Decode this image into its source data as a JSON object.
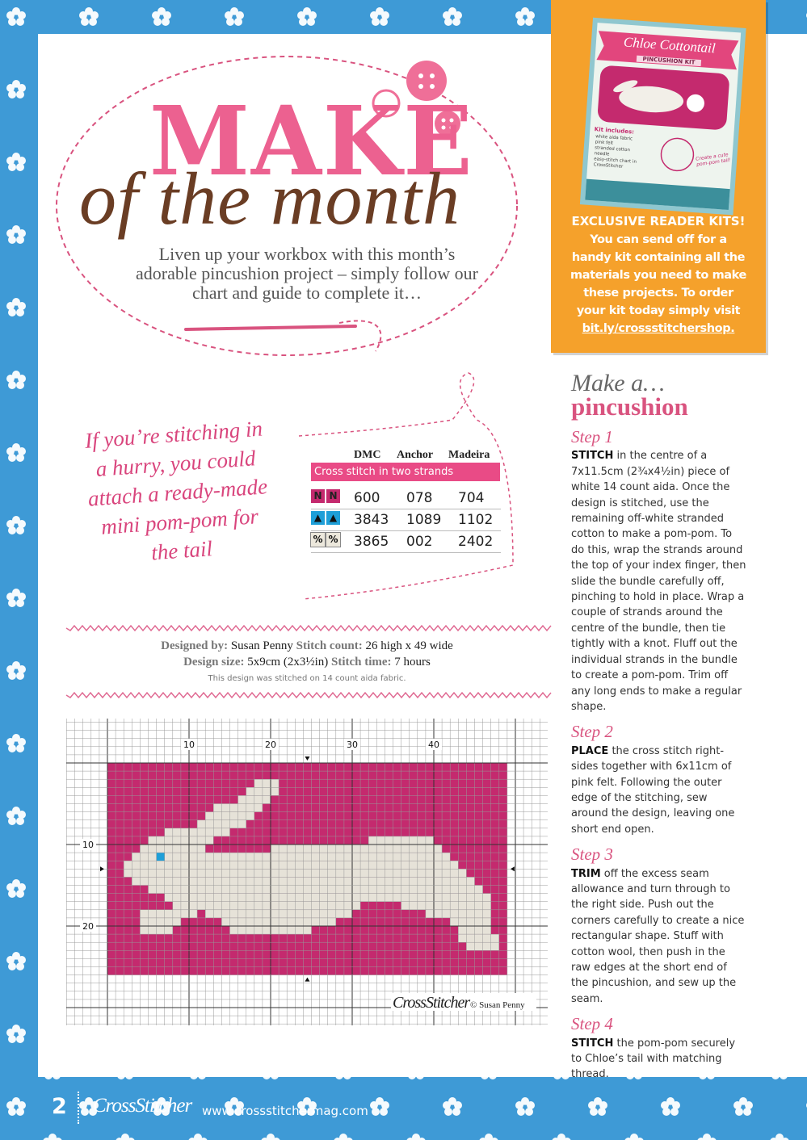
{
  "header": {
    "title": "MAKE",
    "subtitle": "of the month",
    "intro": "Liven up your workbox with this month’s adorable pincushion project – simply follow our chart and guide to complete it…"
  },
  "kit": {
    "product_title": "Chloe Cottontail",
    "product_subtitle": "PINCUSHION KIT",
    "kit_includes_title": "Kit includes:",
    "kit_includes": [
      "white aida fabric",
      "pink felt",
      "stranded cotton",
      "needle",
      "easy-stitch chart in CrossStitcher"
    ],
    "badge": "Create a cute pom-pom tail!",
    "heading": "EXCLUSIVE READER KITS!",
    "text": "You can send off for a handy kit containing all the materials you need to make these projects. To order your kit today simply visit",
    "link": "bit.ly/crossstitchershop."
  },
  "instructions": {
    "heading_1": "Make a…",
    "heading_2": "pincushion",
    "steps": [
      {
        "title": "Step 1",
        "lead": "STITCH",
        "text": "in the centre of a 7x11.5cm (2¾x4½in) piece of white 14 count aida. Once the design is stitched, use the remaining off-white stranded cotton to make a pom-pom. To do this, wrap the strands around the top of your index finger, then slide the bundle carefully off, pinching to hold in place. Wrap a couple of strands around the centre of the bundle, then tie tightly with a knot. Fluff out the individual strands in the bundle to create a pom-pom. Trim off any long ends to make a regular shape."
      },
      {
        "title": "Step 2",
        "lead": "PLACE",
        "text": "the cross stitch right-sides together with 6x11cm of pink felt. Following the outer edge of the stitching, sew around the design, leaving one short end open."
      },
      {
        "title": "Step 3",
        "lead": "TRIM",
        "text": "off the excess seam allowance and turn through to the right side. Push out the corners carefully to create a nice rectangular shape. Stuff with cotton wool, then push in the raw edges at the short end of the pincushion, and sew up the seam."
      },
      {
        "title": "Step 4",
        "lead": "STITCH",
        "text": "the pom-pom securely to Chloe’s tail with matching thread."
      }
    ]
  },
  "note": "If you’re stitching in a hurry, you could attach a ready-made mini pom-pom for the tail",
  "key": {
    "headers": [
      "DMC",
      "Anchor",
      "Madeira"
    ],
    "section": "Cross stitch in two strands",
    "rows": [
      {
        "symbol": "N",
        "values": [
          "600",
          "078",
          "704"
        ]
      },
      {
        "symbol": "▲",
        "values": [
          "3843",
          "1089",
          "1102"
        ]
      },
      {
        "symbol": "%",
        "values": [
          "3865",
          "002",
          "2402"
        ]
      }
    ]
  },
  "design_info": {
    "designed_by_label": "Designed by:",
    "designed_by": "Susan Penny",
    "stitch_count_label": "Stitch count:",
    "stitch_count": "26 high x 49 wide",
    "design_size_label": "Design size:",
    "design_size": "5x9cm (2x3½in)",
    "stitch_time_label": "Stitch time:",
    "stitch_time": "7 hours",
    "fabric_note": "This design was stitched on 14 count aida fabric."
  },
  "chart": {
    "top_labels": [
      10,
      20,
      30,
      40
    ],
    "left_labels": [
      10,
      20
    ],
    "brand": "CrossStitcher",
    "credit": "© Susan Penny"
  },
  "footer": {
    "page": "2",
    "brand": "CrossStitcher",
    "url": "www.crossstitchermag.com"
  }
}
